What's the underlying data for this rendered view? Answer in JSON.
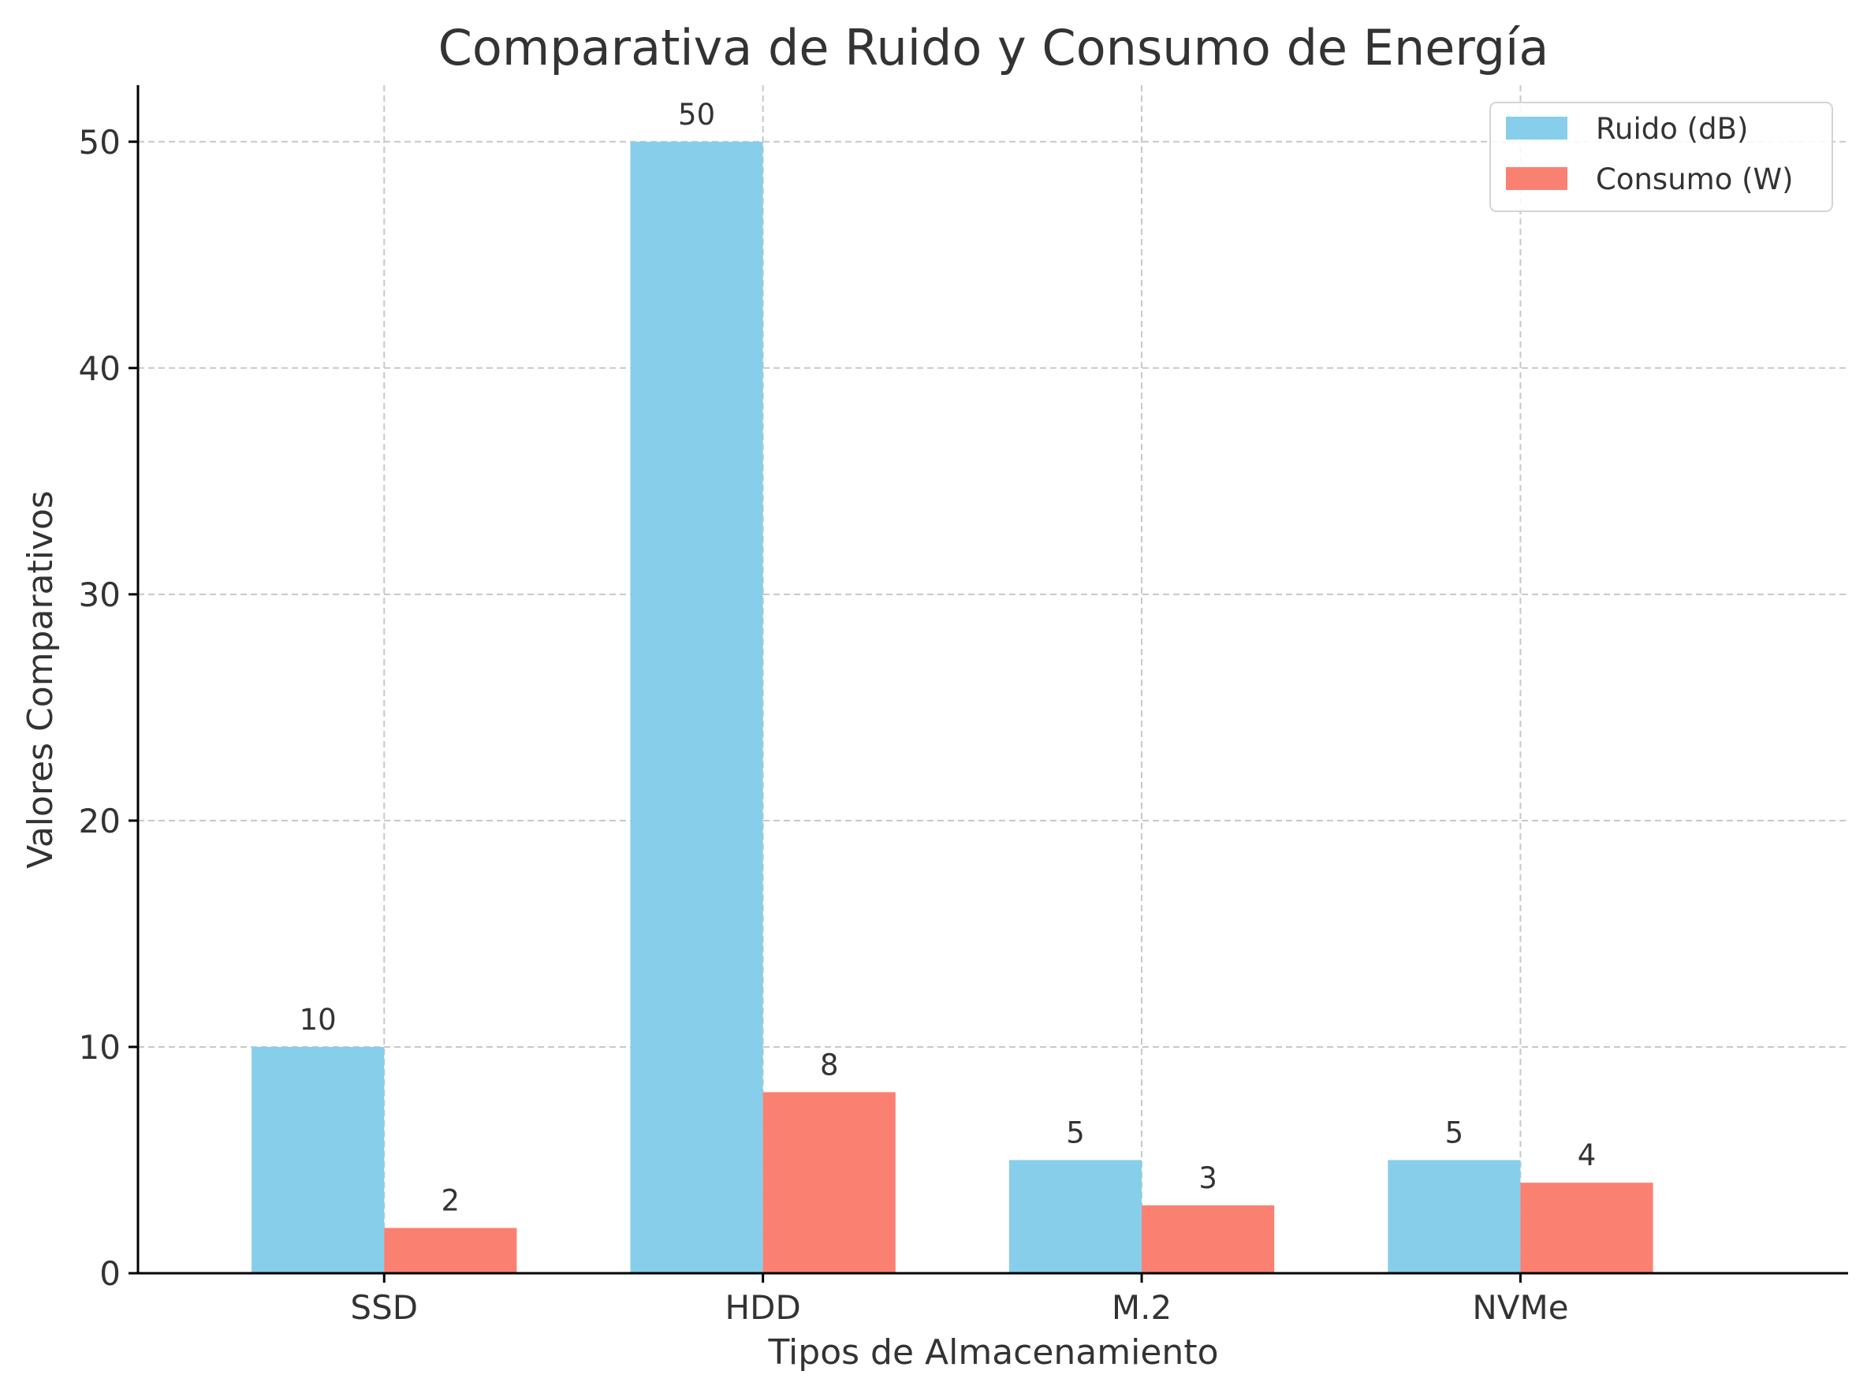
{
  "chart_data": {
    "type": "bar",
    "title": "Comparativa de Ruido y Consumo de Energía",
    "xlabel": "Tipos de Almacenamiento",
    "ylabel": "Valores Comparativos",
    "categories": [
      "SSD",
      "HDD",
      "M.2",
      "NVMe"
    ],
    "series": [
      {
        "name": "Ruido (dB)",
        "values": [
          10,
          50,
          5,
          5
        ],
        "color": "#87ceeb"
      },
      {
        "name": "Consumo (W)",
        "values": [
          2,
          8,
          3,
          4
        ],
        "color": "#fa8072"
      }
    ],
    "ylim": [
      0,
      52.5
    ],
    "yticks": [
      0,
      10,
      20,
      30,
      40,
      50
    ],
    "grid": true,
    "legend": "top-right",
    "data_labels": true
  }
}
